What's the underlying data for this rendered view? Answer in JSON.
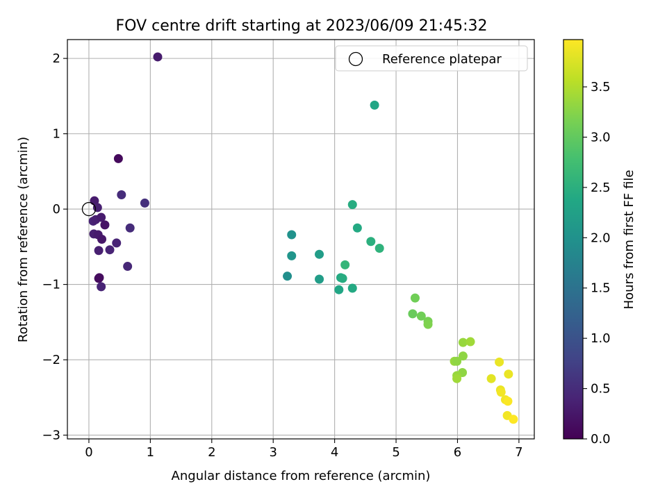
{
  "chart_data": {
    "type": "scatter",
    "title": "FOV centre drift starting at 2023/06/09 21:45:32",
    "xlabel": "Angular distance from reference (arcmin)",
    "ylabel": "Rotation from reference (arcmin)",
    "xlim": [
      -0.35,
      7.25
    ],
    "ylim": [
      -3.05,
      2.25
    ],
    "xticks": [
      0,
      1,
      2,
      3,
      4,
      5,
      6,
      7
    ],
    "yticks": [
      -3,
      -2,
      -1,
      0,
      1,
      2
    ],
    "ytick_labels": [
      "−3",
      "−2",
      "−1",
      "0",
      "1",
      "2"
    ],
    "grid": true,
    "legend": {
      "placement": "top-right",
      "entries": [
        "Reference platepar"
      ]
    },
    "reference_point": {
      "x": 0,
      "y": 0,
      "marker": "hollow-circle"
    },
    "colorbar": {
      "label": "Hours from first FF file",
      "colormap": "viridis",
      "range": [
        0.0,
        3.97
      ],
      "ticks": [
        0.0,
        0.5,
        1.0,
        1.5,
        2.0,
        2.5,
        3.0,
        3.5
      ],
      "tick_labels": [
        "0.0",
        "0.5",
        "1.0",
        "1.5",
        "2.0",
        "2.5",
        "3.0",
        "3.5"
      ]
    },
    "points": [
      {
        "x": 1.12,
        "y": 2.02,
        "hours": 0.3
      },
      {
        "x": 0.48,
        "y": 0.67,
        "hours": 0.1
      },
      {
        "x": 0.53,
        "y": 0.19,
        "hours": 0.5
      },
      {
        "x": 0.91,
        "y": 0.08,
        "hours": 0.55
      },
      {
        "x": 0.09,
        "y": 0.11,
        "hours": 0.3
      },
      {
        "x": 0.14,
        "y": 0.02,
        "hours": 0.35
      },
      {
        "x": 0.07,
        "y": -0.16,
        "hours": 0.4
      },
      {
        "x": 0.11,
        "y": -0.14,
        "hours": 0.35
      },
      {
        "x": 0.2,
        "y": -0.11,
        "hours": 0.3
      },
      {
        "x": 0.26,
        "y": -0.21,
        "hours": 0.2
      },
      {
        "x": 0.67,
        "y": -0.25,
        "hours": 0.5
      },
      {
        "x": 0.08,
        "y": -0.33,
        "hours": 0.35
      },
      {
        "x": 0.15,
        "y": -0.34,
        "hours": 0.3
      },
      {
        "x": 0.21,
        "y": -0.4,
        "hours": 0.25
      },
      {
        "x": 0.45,
        "y": -0.45,
        "hours": 0.4
      },
      {
        "x": 0.16,
        "y": -0.55,
        "hours": 0.35
      },
      {
        "x": 0.34,
        "y": -0.54,
        "hours": 0.4
      },
      {
        "x": 0.63,
        "y": -0.76,
        "hours": 0.45
      },
      {
        "x": 0.17,
        "y": -0.91,
        "hours": 0.15
      },
      {
        "x": 0.16,
        "y": -0.92,
        "hours": 0.12
      },
      {
        "x": 0.2,
        "y": -1.03,
        "hours": 0.4
      },
      {
        "x": 4.65,
        "y": 1.38,
        "hours": 2.35
      },
      {
        "x": 4.29,
        "y": 0.06,
        "hours": 2.45
      },
      {
        "x": 4.37,
        "y": -0.25,
        "hours": 2.4
      },
      {
        "x": 4.59,
        "y": -0.43,
        "hours": 2.5
      },
      {
        "x": 4.73,
        "y": -0.52,
        "hours": 2.55
      },
      {
        "x": 3.3,
        "y": -0.34,
        "hours": 2.0
      },
      {
        "x": 3.3,
        "y": -0.62,
        "hours": 2.05
      },
      {
        "x": 3.75,
        "y": -0.6,
        "hours": 2.2
      },
      {
        "x": 4.17,
        "y": -0.74,
        "hours": 2.6
      },
      {
        "x": 3.23,
        "y": -0.89,
        "hours": 1.95
      },
      {
        "x": 3.75,
        "y": -0.93,
        "hours": 2.2
      },
      {
        "x": 4.1,
        "y": -0.91,
        "hours": 2.4
      },
      {
        "x": 4.13,
        "y": -0.92,
        "hours": 2.45
      },
      {
        "x": 4.07,
        "y": -1.07,
        "hours": 2.35
      },
      {
        "x": 4.29,
        "y": -1.05,
        "hours": 2.4
      },
      {
        "x": 5.31,
        "y": -1.18,
        "hours": 3.1
      },
      {
        "x": 5.27,
        "y": -1.39,
        "hours": 3.05
      },
      {
        "x": 5.41,
        "y": -1.42,
        "hours": 3.1
      },
      {
        "x": 5.52,
        "y": -1.49,
        "hours": 3.15
      },
      {
        "x": 5.52,
        "y": -1.53,
        "hours": 3.2
      },
      {
        "x": 6.09,
        "y": -1.77,
        "hours": 3.35
      },
      {
        "x": 6.21,
        "y": -1.76,
        "hours": 3.4
      },
      {
        "x": 6.09,
        "y": -1.95,
        "hours": 3.3
      },
      {
        "x": 5.95,
        "y": -2.02,
        "hours": 3.35
      },
      {
        "x": 5.99,
        "y": -2.02,
        "hours": 3.3
      },
      {
        "x": 6.08,
        "y": -2.17,
        "hours": 3.3
      },
      {
        "x": 5.99,
        "y": -2.21,
        "hours": 3.35
      },
      {
        "x": 5.99,
        "y": -2.25,
        "hours": 3.4
      },
      {
        "x": 6.68,
        "y": -2.03,
        "hours": 3.85
      },
      {
        "x": 6.83,
        "y": -2.19,
        "hours": 3.85
      },
      {
        "x": 6.55,
        "y": -2.25,
        "hours": 3.8
      },
      {
        "x": 6.7,
        "y": -2.4,
        "hours": 3.85
      },
      {
        "x": 6.71,
        "y": -2.43,
        "hours": 3.9
      },
      {
        "x": 6.78,
        "y": -2.53,
        "hours": 3.9
      },
      {
        "x": 6.82,
        "y": -2.55,
        "hours": 3.95
      },
      {
        "x": 6.81,
        "y": -2.74,
        "hours": 3.9
      },
      {
        "x": 6.91,
        "y": -2.79,
        "hours": 3.97
      }
    ]
  }
}
